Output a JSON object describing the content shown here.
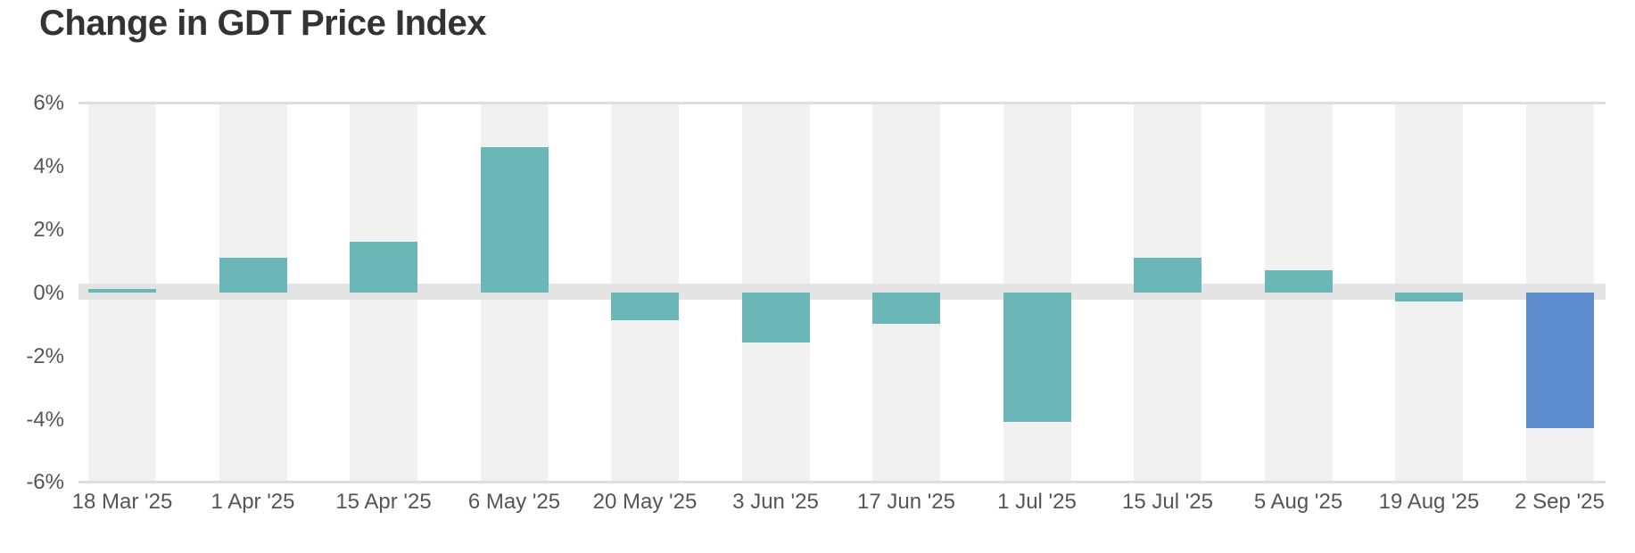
{
  "title": "Change in GDT Price Index",
  "chart_data": {
    "type": "bar",
    "title": "Change in GDT Price Index",
    "categories": [
      "18 Mar '25",
      "1 Apr '25",
      "15 Apr '25",
      "6 May '25",
      "20 May '25",
      "3 Jun '25",
      "17 Jun '25",
      "1 Jul '25",
      "15 Jul '25",
      "5 Aug '25",
      "19 Aug '25",
      "2 Sep '25"
    ],
    "values": [
      0.1,
      1.1,
      1.6,
      4.6,
      -0.9,
      -1.6,
      -1.0,
      -4.1,
      1.1,
      0.7,
      -0.3,
      -4.3
    ],
    "xlabel": "",
    "ylabel": "",
    "ylim": [
      -6,
      6
    ],
    "ytick_labels": [
      "6%",
      "4%",
      "2%",
      "0%",
      "-2%",
      "-4%",
      "-6%"
    ],
    "ytick_values": [
      6,
      4,
      2,
      0,
      -2,
      -4,
      -6
    ],
    "grid": "top, bottom and zero band only; alternating vertical column bands",
    "legend": "none",
    "bar_color": "#6bb7b8",
    "highlight_color": "#5c8ccd",
    "highlight_index": 11
  }
}
